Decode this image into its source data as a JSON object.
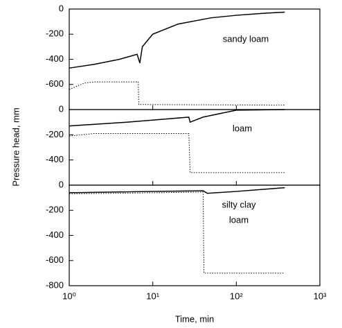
{
  "chart_data": [
    {
      "type": "line",
      "label": "sandy loam",
      "xscale": "log",
      "xlim": [
        1,
        1000
      ],
      "xticks": [
        1,
        10,
        100,
        1000
      ],
      "ylim": [
        -800,
        0
      ],
      "yticks": [
        0,
        -200,
        -400,
        -600
      ],
      "series": [
        {
          "color": "#000000",
          "style": "solid",
          "x": [
            1,
            2,
            4,
            6.5,
            7,
            7.5,
            10,
            20,
            50,
            100,
            200,
            380
          ],
          "values": [
            -470,
            -440,
            -400,
            -360,
            -430,
            -300,
            -200,
            -120,
            -70,
            -50,
            -35,
            -25
          ]
        },
        {
          "color": "#000000",
          "style": "dotted",
          "x": [
            1,
            1.5,
            2,
            6.7,
            6.8,
            380
          ],
          "values": [
            -640,
            -590,
            -580,
            -580,
            -760,
            -765
          ]
        }
      ]
    },
    {
      "type": "line",
      "label": "loam",
      "ylabel": "Pressure head, mm",
      "xscale": "log",
      "xlim": [
        1,
        1000
      ],
      "xticks": [
        1,
        10,
        100,
        1000
      ],
      "ylim": [
        -600,
        0
      ],
      "yticks": [
        0,
        -200,
        -400
      ],
      "series": [
        {
          "color": "#000000",
          "style": "solid",
          "x": [
            1,
            5,
            27,
            28,
            40,
            100,
            380
          ],
          "values": [
            -130,
            -100,
            -60,
            -100,
            -60,
            -5,
            0
          ]
        },
        {
          "color": "#000000",
          "style": "dotted",
          "x": [
            1,
            2,
            27,
            28,
            380
          ],
          "values": [
            -210,
            -190,
            -190,
            -500,
            -500
          ]
        }
      ]
    },
    {
      "type": "line",
      "label": [
        "silty clay",
        "loam"
      ],
      "xlabel": "Time, min",
      "xscale": "log",
      "xlim": [
        1,
        1000
      ],
      "xticks": [
        {
          "value": 1,
          "label": "10⁰"
        },
        {
          "value": 10,
          "label": "10¹"
        },
        {
          "value": 100,
          "label": "10²"
        },
        {
          "value": 1000,
          "label": "10³"
        }
      ],
      "ylim": [
        -800,
        0
      ],
      "yticks": [
        0,
        -200,
        -400,
        -600,
        -800
      ],
      "series": [
        {
          "color": "#000000",
          "style": "solid",
          "x": [
            1,
            10,
            40,
            45,
            100,
            380
          ],
          "values": [
            -60,
            -50,
            -45,
            -65,
            -50,
            -20
          ]
        },
        {
          "color": "#000000",
          "style": "dotted",
          "x": [
            1,
            10,
            40,
            41,
            380
          ],
          "values": [
            -70,
            -60,
            -55,
            -700,
            -700
          ]
        }
      ]
    }
  ]
}
